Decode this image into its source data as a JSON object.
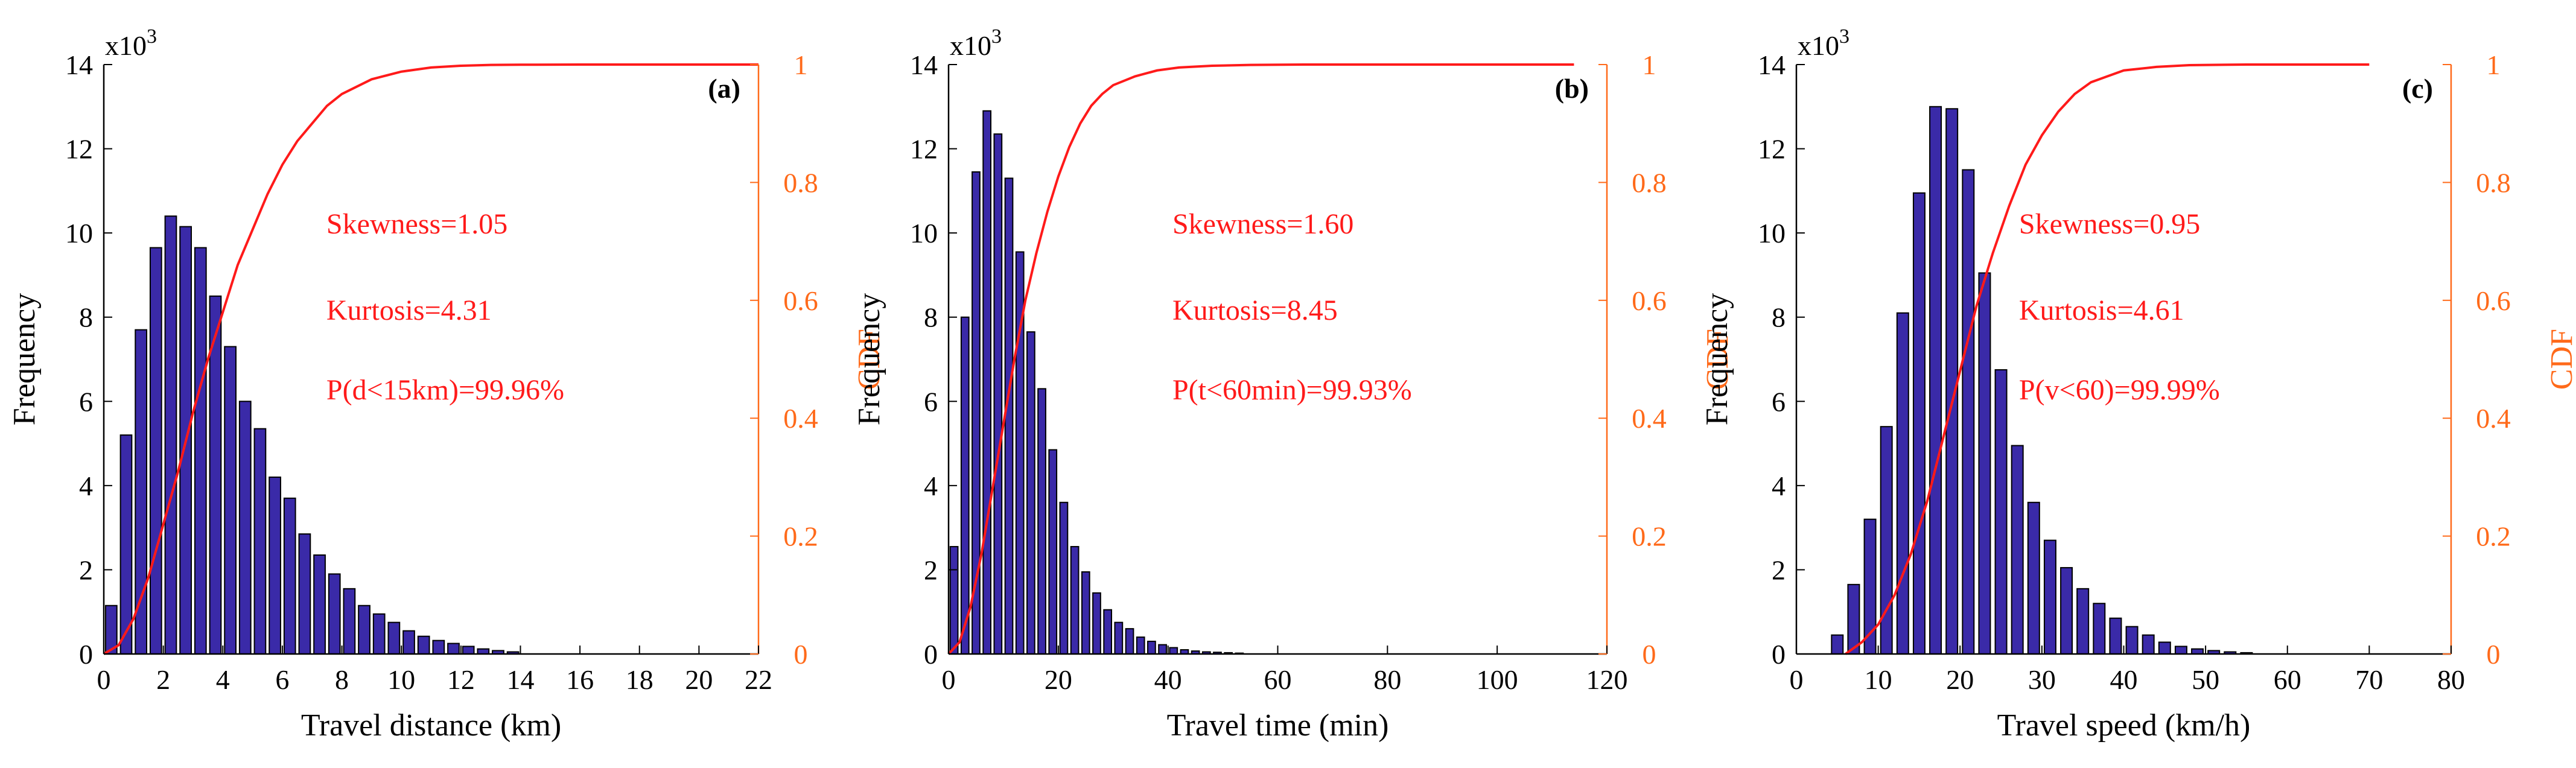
{
  "colors": {
    "bar_fill": "#3a2aa8",
    "bar_edge": "#000000",
    "cdf_line": "#ff1a1a",
    "right_axis": "#ff6a1a",
    "annotation": "#ff1a1a",
    "axis": "#000000"
  },
  "chart_data": [
    {
      "type": "bar",
      "panel_label": "(a)",
      "xlabel": "Travel distance (km)",
      "ylabel": "Frequency",
      "y2label": "CDF",
      "yscale_label_base": "x10",
      "yscale_label_exp": "3",
      "xlim": [
        0,
        22
      ],
      "ylim": [
        0,
        14
      ],
      "y2lim": [
        0,
        1
      ],
      "xticks": [
        "0",
        "2",
        "4",
        "6",
        "8",
        "10",
        "12",
        "14",
        "16",
        "18",
        "20",
        "22"
      ],
      "yticks": [
        "0",
        "2",
        "4",
        "6",
        "8",
        "10",
        "12",
        "14"
      ],
      "y2ticks": [
        "0",
        "0.2",
        "0.4",
        "0.6",
        "0.8",
        "1"
      ],
      "bar_width": 0.38,
      "x": [
        0.25,
        0.75,
        1.25,
        1.75,
        2.25,
        2.75,
        3.25,
        3.75,
        4.25,
        4.75,
        5.25,
        5.75,
        6.25,
        6.75,
        7.25,
        7.75,
        8.25,
        8.75,
        9.25,
        9.75,
        10.25,
        10.75,
        11.25,
        11.75,
        12.25,
        12.75,
        13.25,
        13.75
      ],
      "values": [
        1.15,
        5.2,
        7.7,
        9.65,
        10.4,
        10.15,
        9.65,
        8.5,
        7.3,
        6.0,
        5.35,
        4.2,
        3.7,
        2.85,
        2.35,
        1.9,
        1.55,
        1.15,
        0.95,
        0.75,
        0.55,
        0.42,
        0.32,
        0.25,
        0.18,
        0.12,
        0.08,
        0.05
      ],
      "cdf_x": [
        0,
        0.5,
        1,
        1.5,
        2,
        2.5,
        3,
        3.5,
        4,
        4.5,
        5,
        5.5,
        6,
        6.5,
        7,
        7.5,
        8,
        9,
        10,
        11,
        12,
        13,
        14,
        16,
        18,
        22
      ],
      "cdf_y": [
        0,
        0.015,
        0.06,
        0.13,
        0.22,
        0.31,
        0.41,
        0.5,
        0.58,
        0.66,
        0.72,
        0.78,
        0.83,
        0.87,
        0.9,
        0.93,
        0.95,
        0.975,
        0.988,
        0.995,
        0.998,
        0.9993,
        0.9997,
        1,
        1,
        1
      ],
      "annotations": [
        "Skewness=1.05",
        "Kurtosis=4.31",
        "P(d<15km)=99.96%"
      ]
    },
    {
      "type": "bar",
      "panel_label": "(b)",
      "xlabel": "Travel time (min)",
      "ylabel": "Frequency",
      "y2label": "CDF",
      "yscale_label_base": "x10",
      "yscale_label_exp": "3",
      "xlim": [
        0,
        120
      ],
      "ylim": [
        0,
        14
      ],
      "y2lim": [
        0,
        1
      ],
      "xticks": [
        "0",
        "20",
        "40",
        "60",
        "80",
        "100",
        "120"
      ],
      "yticks": [
        "0",
        "2",
        "4",
        "6",
        "8",
        "10",
        "12",
        "14"
      ],
      "y2ticks": [
        "0",
        "0.2",
        "0.4",
        "0.6",
        "0.8",
        "1"
      ],
      "bar_width": 1.4,
      "x": [
        1,
        3,
        5,
        7,
        9,
        11,
        13,
        15,
        17,
        19,
        21,
        23,
        25,
        27,
        29,
        31,
        33,
        35,
        37,
        39,
        41,
        43,
        45,
        47,
        49,
        51,
        53
      ],
      "values": [
        2.55,
        8.0,
        11.45,
        12.9,
        12.35,
        11.3,
        9.55,
        7.65,
        6.3,
        4.85,
        3.6,
        2.55,
        1.95,
        1.45,
        1.05,
        0.75,
        0.6,
        0.4,
        0.3,
        0.22,
        0.15,
        0.1,
        0.07,
        0.05,
        0.04,
        0.03,
        0.02
      ],
      "cdf_x": [
        0,
        2,
        4,
        6,
        8,
        10,
        12,
        14,
        16,
        18,
        20,
        22,
        24,
        26,
        28,
        30,
        34,
        38,
        42,
        48,
        55,
        65,
        80,
        100,
        114
      ],
      "cdf_y": [
        0,
        0.02,
        0.08,
        0.17,
        0.28,
        0.39,
        0.5,
        0.6,
        0.68,
        0.75,
        0.81,
        0.86,
        0.9,
        0.93,
        0.95,
        0.965,
        0.98,
        0.99,
        0.995,
        0.998,
        0.9993,
        1,
        1,
        1,
        1
      ],
      "annotations": [
        "Skewness=1.60",
        "Kurtosis=8.45",
        "P(t<60min)=99.93%"
      ]
    },
    {
      "type": "bar",
      "panel_label": "(c)",
      "xlabel": "Travel speed (km/h)",
      "ylabel": "Frequency",
      "y2label": "CDF",
      "yscale_label_base": "x10",
      "yscale_label_exp": "3",
      "xlim": [
        0,
        80
      ],
      "ylim": [
        0,
        14
      ],
      "y2lim": [
        0,
        1
      ],
      "xticks": [
        "0",
        "10",
        "20",
        "30",
        "40",
        "50",
        "60",
        "70",
        "80"
      ],
      "yticks": [
        "0",
        "2",
        "4",
        "6",
        "8",
        "10",
        "12",
        "14"
      ],
      "y2ticks": [
        "0",
        "0.2",
        "0.4",
        "0.6",
        "0.8",
        "1"
      ],
      "bar_width": 1.4,
      "x": [
        5,
        7,
        9,
        11,
        13,
        15,
        17,
        19,
        21,
        23,
        25,
        27,
        29,
        31,
        33,
        35,
        37,
        39,
        41,
        43,
        45,
        47,
        49,
        51,
        53,
        55
      ],
      "values": [
        0.45,
        1.65,
        3.2,
        5.4,
        8.1,
        10.95,
        13.0,
        12.95,
        11.5,
        9.05,
        6.75,
        4.95,
        3.6,
        2.7,
        2.05,
        1.55,
        1.2,
        0.85,
        0.65,
        0.45,
        0.28,
        0.18,
        0.12,
        0.08,
        0.05,
        0.03
      ],
      "cdf_x": [
        6,
        8,
        10,
        12,
        14,
        16,
        18,
        20,
        22,
        24,
        26,
        28,
        30,
        32,
        34,
        36,
        38,
        40,
        44,
        48,
        55,
        65,
        70
      ],
      "cdf_y": [
        0,
        0.02,
        0.05,
        0.1,
        0.17,
        0.26,
        0.37,
        0.48,
        0.59,
        0.68,
        0.76,
        0.83,
        0.88,
        0.92,
        0.95,
        0.97,
        0.98,
        0.99,
        0.996,
        0.999,
        1,
        1,
        1
      ],
      "annotations": [
        "Skewness=0.95",
        "Kurtosis=4.61",
        "P(v<60)=99.99%"
      ]
    }
  ]
}
